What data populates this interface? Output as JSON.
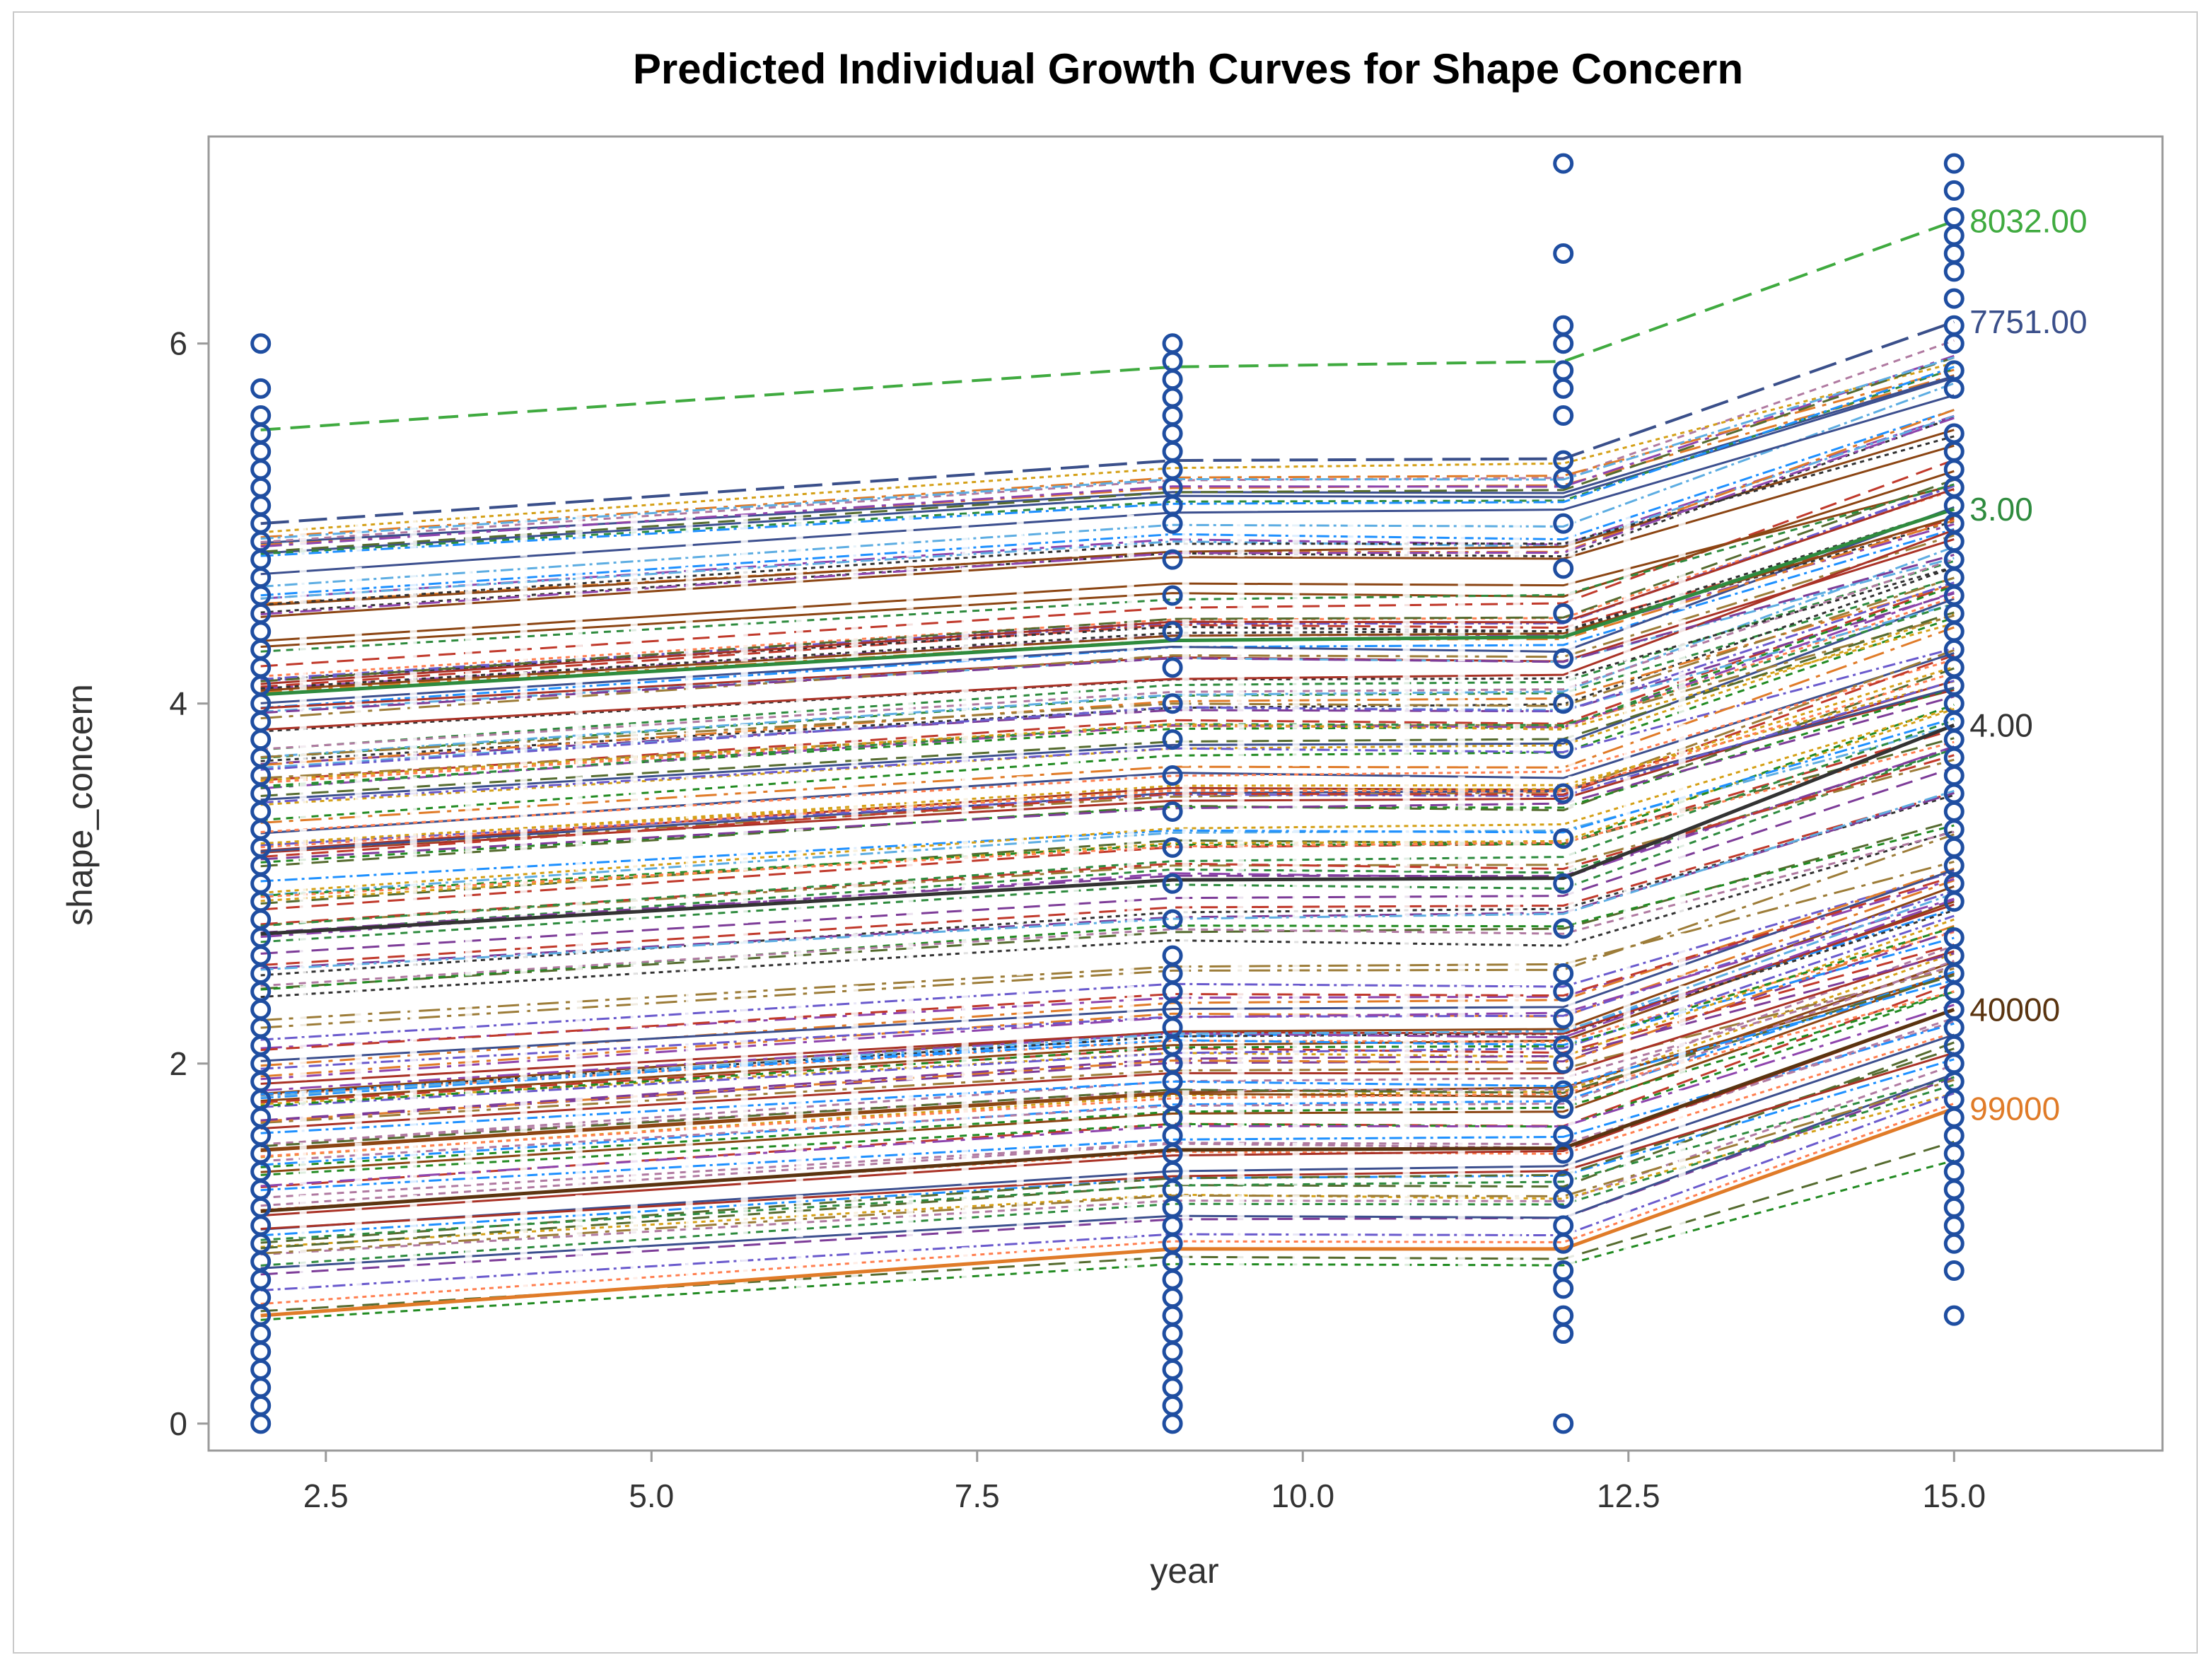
{
  "chart_data": {
    "type": "line",
    "title": "Predicted Individual Growth Curves for Shape Concern",
    "xlabel": "year",
    "ylabel": "shape_concern",
    "xlim": [
      1.6,
      16.6
    ],
    "ylim": [
      -0.15,
      7.15
    ],
    "x_ticks": [
      "2.5",
      "5.0",
      "7.5",
      "10.0",
      "12.5",
      "15.0"
    ],
    "y_ticks": [
      "0",
      "2",
      "4",
      "6"
    ],
    "x": [
      2,
      9,
      12,
      15
    ],
    "observed_points": {
      "name": "observed",
      "color": "#1f4ea1",
      "year_2": [
        0,
        0.1,
        0.2,
        0.3,
        0.4,
        0.5,
        0.6,
        0.7,
        0.8,
        0.9,
        1.0,
        1.1,
        1.2,
        1.3,
        1.4,
        1.5,
        1.6,
        1.7,
        1.8,
        1.9,
        2.0,
        2.1,
        2.2,
        2.3,
        2.4,
        2.5,
        2.6,
        2.7,
        2.8,
        2.9,
        3.0,
        3.1,
        3.2,
        3.3,
        3.4,
        3.5,
        3.6,
        3.7,
        3.8,
        3.9,
        4.0,
        4.1,
        4.2,
        4.3,
        4.4,
        4.5,
        4.6,
        4.7,
        4.8,
        4.9,
        5.0,
        5.1,
        5.2,
        5.3,
        5.4,
        5.5,
        5.6,
        5.75,
        6.0
      ],
      "year_9": [
        0,
        0.1,
        0.2,
        0.3,
        0.4,
        0.5,
        0.6,
        0.7,
        0.8,
        0.9,
        1.0,
        1.1,
        1.2,
        1.3,
        1.4,
        1.5,
        1.6,
        1.7,
        1.8,
        1.9,
        2.0,
        2.1,
        2.2,
        2.3,
        2.4,
        2.5,
        2.6,
        2.8,
        3.0,
        3.2,
        3.4,
        3.6,
        3.8,
        4.0,
        4.2,
        4.4,
        4.6,
        4.8,
        5.0,
        5.1,
        5.2,
        5.3,
        5.4,
        5.5,
        5.6,
        5.7,
        5.8,
        5.9,
        6.0
      ],
      "year_12": [
        0,
        0.5,
        0.6,
        0.75,
        0.85,
        1.0,
        1.1,
        1.25,
        1.35,
        1.5,
        1.6,
        1.75,
        1.85,
        2.0,
        2.1,
        2.25,
        2.4,
        2.5,
        2.75,
        3.0,
        3.25,
        3.5,
        3.75,
        4.0,
        4.25,
        4.5,
        4.75,
        5.0,
        5.25,
        5.35,
        5.6,
        5.75,
        5.85,
        6.0,
        6.1,
        6.5,
        7.0
      ],
      "year_15": [
        0.6,
        0.85,
        1.0,
        1.1,
        1.2,
        1.3,
        1.4,
        1.5,
        1.6,
        1.7,
        1.8,
        1.9,
        2.0,
        2.1,
        2.2,
        2.3,
        2.4,
        2.5,
        2.6,
        2.7,
        2.9,
        3.0,
        3.1,
        3.2,
        3.3,
        3.4,
        3.5,
        3.6,
        3.7,
        3.8,
        3.9,
        4.0,
        4.1,
        4.2,
        4.3,
        4.4,
        4.5,
        4.6,
        4.7,
        4.8,
        4.9,
        5.0,
        5.1,
        5.2,
        5.3,
        5.4,
        5.5,
        5.75,
        5.85,
        6.0,
        6.1,
        6.25,
        6.4,
        6.5,
        6.6,
        6.7,
        6.85,
        7.0
      ]
    },
    "highlighted_series": [
      {
        "name": "8032.00",
        "values": [
          5.52,
          5.87,
          5.9,
          6.68
        ],
        "color": "#3faa3f",
        "dash": "dashed"
      },
      {
        "name": "7751.00",
        "values": [
          5.0,
          5.35,
          5.36,
          6.12
        ],
        "color": "#3a4f8a",
        "dash": "longdash"
      },
      {
        "name": "3.00",
        "values": [
          4.05,
          4.35,
          4.37,
          5.08
        ],
        "color": "#2e8b3e",
        "dash": "solid"
      },
      {
        "name": "4.00",
        "values": [
          2.72,
          3.02,
          3.03,
          3.88
        ],
        "color": "#333333",
        "dash": "solid"
      },
      {
        "name": "40000",
        "values": [
          1.18,
          1.52,
          1.53,
          2.3
        ],
        "color": "#5a3410",
        "dash": "solid"
      },
      {
        "name": "99000",
        "values": [
          0.6,
          0.97,
          0.97,
          1.75
        ],
        "color": "#e07b28",
        "dash": "solid"
      }
    ],
    "n_background_curves": 170,
    "background_curve_range": {
      "year_2": [
        0.55,
        5.0
      ],
      "year_15": [
        1.7,
        6.1
      ]
    },
    "end_labels": [
      "8032.00",
      "7751.00",
      "3.00",
      "4.00",
      "40000",
      "99000"
    ]
  }
}
